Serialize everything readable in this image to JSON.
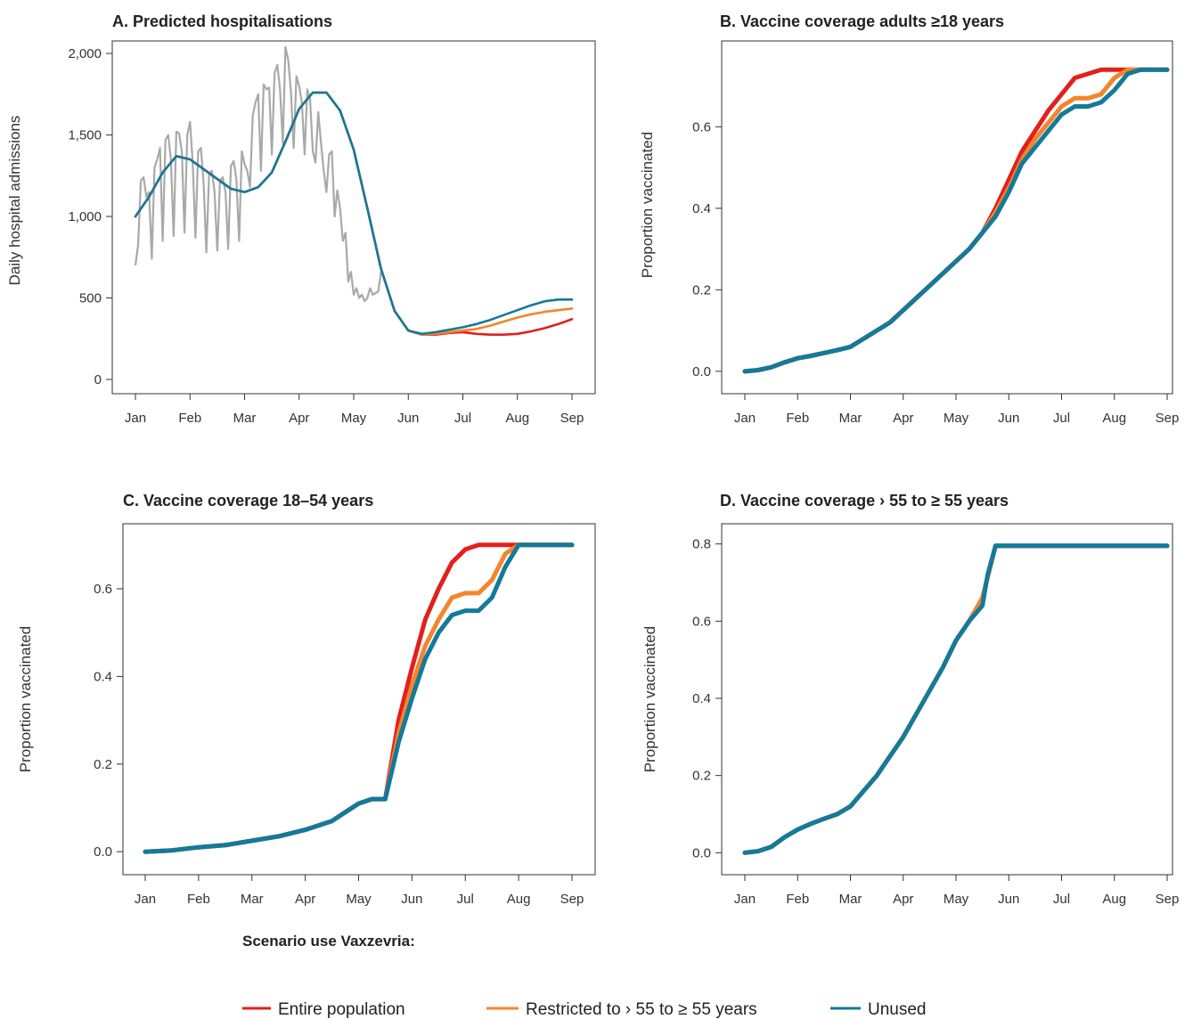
{
  "legend": {
    "title": "Scenario use Vaxzevria:",
    "items": [
      {
        "label": "Entire population",
        "color": "#e2201c"
      },
      {
        "label": "Restricted to › 55 to ≥ 55 years",
        "color": "#f5852b"
      },
      {
        "label": "Unused",
        "color": "#137a9a"
      }
    ]
  },
  "chart_data": [
    {
      "id": "A",
      "type": "line",
      "title": "A. Predicted hospitalisations",
      "ylabel": "Daily hospital admissions",
      "x_ticks": [
        "Jan",
        "Feb",
        "Mar",
        "Apr",
        "May",
        "Jun",
        "Jul",
        "Aug",
        "Sep"
      ],
      "xlim": [
        0,
        8
      ],
      "ylim": [
        0,
        2000
      ],
      "y_ticks": [
        0,
        500,
        1000,
        1500,
        2000
      ],
      "y_tick_labels": [
        "0",
        "500",
        "1,000",
        "1,500",
        "2,000"
      ],
      "observed": {
        "color": "#a9a9a9",
        "x": [
          0,
          0.05,
          0.1,
          0.15,
          0.2,
          0.25,
          0.3,
          0.35,
          0.4,
          0.45,
          0.5,
          0.55,
          0.6,
          0.65,
          0.7,
          0.75,
          0.8,
          0.85,
          0.9,
          0.95,
          1,
          1.05,
          1.1,
          1.15,
          1.2,
          1.25,
          1.3,
          1.35,
          1.4,
          1.45,
          1.5,
          1.55,
          1.6,
          1.65,
          1.7,
          1.75,
          1.8,
          1.85,
          1.9,
          1.95,
          2,
          2.05,
          2.1,
          2.15,
          2.2,
          2.25,
          2.3,
          2.35,
          2.4,
          2.45,
          2.5,
          2.55,
          2.6,
          2.65,
          2.7,
          2.75,
          2.8,
          2.85,
          2.9,
          2.95,
          3,
          3.05,
          3.1,
          3.15,
          3.2,
          3.25,
          3.3,
          3.35,
          3.4,
          3.45,
          3.5,
          3.55,
          3.6,
          3.65,
          3.7,
          3.75,
          3.8,
          3.85,
          3.9,
          3.95,
          4,
          4.05,
          4.1,
          4.15,
          4.2,
          4.25,
          4.3,
          4.35,
          4.4,
          4.45,
          4.5
        ],
        "y": [
          700,
          830,
          1220,
          1240,
          1120,
          1150,
          740,
          1300,
          1350,
          1420,
          850,
          1470,
          1500,
          1350,
          880,
          1520,
          1510,
          1400,
          900,
          1500,
          1580,
          1330,
          870,
          1400,
          1420,
          1200,
          780,
          1260,
          1280,
          1150,
          790,
          1220,
          1240,
          1150,
          800,
          1310,
          1340,
          1230,
          850,
          1400,
          1320,
          1280,
          1180,
          1620,
          1700,
          1750,
          1280,
          1810,
          1780,
          1790,
          1380,
          1880,
          1930,
          1780,
          1450,
          2040,
          1960,
          1760,
          1420,
          1860,
          1800,
          1700,
          1380,
          1780,
          1720,
          1400,
          1330,
          1640,
          1450,
          1280,
          1150,
          1380,
          1400,
          1000,
          1160,
          1050,
          850,
          900,
          600,
          660,
          520,
          560,
          500,
          520,
          480,
          500,
          560,
          520,
          530,
          540,
          660
        ],
        "y_note": "observed values"
      },
      "series": [
        {
          "name": "Entire population",
          "color": "#e2201c",
          "x": [
            0,
            0.25,
            0.5,
            0.75,
            1,
            1.25,
            1.5,
            1.75,
            2,
            2.25,
            2.5,
            2.75,
            3,
            3.25,
            3.5,
            3.75,
            4,
            4.25,
            4.5,
            4.75,
            5,
            5.25,
            5.5,
            5.75,
            6,
            6.25,
            6.5,
            6.75,
            7,
            7.25,
            7.5,
            7.75,
            8
          ],
          "y": [
            1000,
            1120,
            1270,
            1370,
            1350,
            1290,
            1230,
            1170,
            1150,
            1180,
            1270,
            1460,
            1660,
            1760,
            1760,
            1650,
            1410,
            1050,
            680,
            420,
            300,
            275,
            275,
            285,
            290,
            280,
            275,
            275,
            280,
            295,
            315,
            340,
            370
          ]
        },
        {
          "name": "Restricted to › 55 to ≥ 55 years",
          "color": "#f5852b",
          "x": [
            0,
            0.25,
            0.5,
            0.75,
            1,
            1.25,
            1.5,
            1.75,
            2,
            2.25,
            2.5,
            2.75,
            3,
            3.25,
            3.5,
            3.75,
            4,
            4.25,
            4.5,
            4.75,
            5,
            5.25,
            5.5,
            5.75,
            6,
            6.25,
            6.5,
            6.75,
            7,
            7.25,
            7.5,
            7.75,
            8
          ],
          "y": [
            1000,
            1120,
            1270,
            1370,
            1350,
            1290,
            1230,
            1170,
            1150,
            1180,
            1270,
            1460,
            1660,
            1760,
            1760,
            1650,
            1410,
            1050,
            680,
            420,
            300,
            275,
            280,
            290,
            300,
            310,
            330,
            355,
            380,
            400,
            415,
            425,
            435
          ]
        },
        {
          "name": "Unused",
          "color": "#137a9a",
          "x": [
            0,
            0.25,
            0.5,
            0.75,
            1,
            1.25,
            1.5,
            1.75,
            2,
            2.25,
            2.5,
            2.75,
            3,
            3.25,
            3.5,
            3.75,
            4,
            4.25,
            4.5,
            4.75,
            5,
            5.25,
            5.5,
            5.75,
            6,
            6.25,
            6.5,
            6.75,
            7,
            7.25,
            7.5,
            7.75,
            8
          ],
          "y": [
            1000,
            1120,
            1270,
            1370,
            1350,
            1290,
            1230,
            1170,
            1150,
            1180,
            1270,
            1460,
            1660,
            1760,
            1760,
            1650,
            1410,
            1050,
            680,
            420,
            300,
            280,
            290,
            305,
            320,
            340,
            365,
            395,
            425,
            455,
            480,
            490,
            490
          ]
        }
      ]
    },
    {
      "id": "B",
      "type": "line",
      "title": "B. Vaccine coverage adults ≥18 years",
      "ylabel": "Proportion vaccinated",
      "x_ticks": [
        "Jan",
        "Feb",
        "Mar",
        "Apr",
        "May",
        "Jun",
        "Jul",
        "Aug",
        "Sep"
      ],
      "xlim": [
        0,
        8
      ],
      "ylim": [
        -0.02,
        0.78
      ],
      "y_ticks": [
        0,
        0.2,
        0.4,
        0.6
      ],
      "y_tick_labels": [
        "0.0",
        "0.2",
        "0.4",
        "0.6"
      ],
      "series": [
        {
          "name": "Entire population",
          "color": "#e2201c",
          "x": [
            0,
            0.25,
            0.5,
            0.75,
            1,
            1.25,
            1.5,
            1.75,
            2,
            2.25,
            2.5,
            2.75,
            3,
            3.25,
            3.5,
            3.75,
            4,
            4.25,
            4.5,
            4.75,
            5,
            5.25,
            5.5,
            5.75,
            6,
            6.25,
            6.5,
            6.75,
            7,
            7.25,
            7.5,
            7.75,
            8
          ],
          "y": [
            0,
            0.003,
            0.01,
            0.022,
            0.032,
            0.038,
            0.045,
            0.052,
            0.06,
            0.08,
            0.1,
            0.12,
            0.15,
            0.18,
            0.21,
            0.24,
            0.27,
            0.3,
            0.34,
            0.4,
            0.47,
            0.54,
            0.59,
            0.64,
            0.68,
            0.72,
            0.73,
            0.74,
            0.74,
            0.74,
            0.74,
            0.74,
            0.74
          ]
        },
        {
          "name": "Restricted to › 55 to ≥ 55 years",
          "color": "#f5852b",
          "x": [
            0,
            0.25,
            0.5,
            0.75,
            1,
            1.25,
            1.5,
            1.75,
            2,
            2.25,
            2.5,
            2.75,
            3,
            3.25,
            3.5,
            3.75,
            4,
            4.25,
            4.5,
            4.75,
            5,
            5.25,
            5.5,
            5.75,
            6,
            6.25,
            6.5,
            6.75,
            7,
            7.25,
            7.5,
            7.75,
            8
          ],
          "y": [
            0,
            0.003,
            0.01,
            0.022,
            0.032,
            0.038,
            0.045,
            0.052,
            0.06,
            0.08,
            0.1,
            0.12,
            0.15,
            0.18,
            0.21,
            0.24,
            0.27,
            0.3,
            0.34,
            0.39,
            0.45,
            0.52,
            0.57,
            0.61,
            0.65,
            0.67,
            0.67,
            0.68,
            0.72,
            0.74,
            0.74,
            0.74,
            0.74
          ]
        },
        {
          "name": "Unused",
          "color": "#137a9a",
          "x": [
            0,
            0.25,
            0.5,
            0.75,
            1,
            1.25,
            1.5,
            1.75,
            2,
            2.25,
            2.5,
            2.75,
            3,
            3.25,
            3.5,
            3.75,
            4,
            4.25,
            4.5,
            4.75,
            5,
            5.25,
            5.5,
            5.75,
            6,
            6.25,
            6.5,
            6.75,
            7,
            7.25,
            7.5,
            7.75,
            8
          ],
          "y": [
            0,
            0.003,
            0.01,
            0.022,
            0.032,
            0.038,
            0.045,
            0.052,
            0.06,
            0.08,
            0.1,
            0.12,
            0.15,
            0.18,
            0.21,
            0.24,
            0.27,
            0.3,
            0.34,
            0.38,
            0.44,
            0.51,
            0.55,
            0.59,
            0.63,
            0.65,
            0.65,
            0.66,
            0.69,
            0.73,
            0.74,
            0.74,
            0.74
          ]
        }
      ]
    },
    {
      "id": "C",
      "type": "line",
      "title": "C. Vaccine coverage 18–54 years",
      "ylabel": "Proportion vaccinated",
      "x_ticks": [
        "Jan",
        "Feb",
        "Mar",
        "Apr",
        "May",
        "Jun",
        "Jul",
        "Aug",
        "Sep"
      ],
      "xlim": [
        0,
        8
      ],
      "ylim": [
        -0.02,
        0.72
      ],
      "y_ticks": [
        0,
        0.2,
        0.4,
        0.6
      ],
      "y_tick_labels": [
        "0.0",
        "0.2",
        "0.4",
        "0.6"
      ],
      "series": [
        {
          "name": "Entire population",
          "color": "#e2201c",
          "x": [
            0,
            0.5,
            1,
            1.5,
            2,
            2.5,
            3,
            3.5,
            3.75,
            4,
            4.25,
            4.5,
            4.75,
            5,
            5.25,
            5.5,
            5.75,
            6,
            6.25,
            6.5,
            6.75,
            7,
            7.25,
            7.5,
            7.75,
            8
          ],
          "y": [
            0,
            0.003,
            0.01,
            0.015,
            0.025,
            0.035,
            0.05,
            0.07,
            0.09,
            0.11,
            0.12,
            0.12,
            0.3,
            0.42,
            0.53,
            0.6,
            0.66,
            0.69,
            0.7,
            0.7,
            0.7,
            0.7,
            0.7,
            0.7,
            0.7,
            0.7
          ]
        },
        {
          "name": "Restricted to › 55 to ≥ 55 years",
          "color": "#f5852b",
          "x": [
            0,
            0.5,
            1,
            1.5,
            2,
            2.5,
            3,
            3.5,
            3.75,
            4,
            4.25,
            4.5,
            4.75,
            5,
            5.25,
            5.5,
            5.75,
            6,
            6.25,
            6.5,
            6.75,
            7,
            7.25,
            7.5,
            7.75,
            8
          ],
          "y": [
            0,
            0.003,
            0.01,
            0.015,
            0.025,
            0.035,
            0.05,
            0.07,
            0.09,
            0.11,
            0.12,
            0.12,
            0.27,
            0.38,
            0.47,
            0.53,
            0.58,
            0.59,
            0.59,
            0.62,
            0.68,
            0.7,
            0.7,
            0.7,
            0.7,
            0.7
          ]
        },
        {
          "name": "Unused",
          "color": "#137a9a",
          "x": [
            0,
            0.5,
            1,
            1.5,
            2,
            2.5,
            3,
            3.5,
            3.75,
            4,
            4.25,
            4.5,
            4.75,
            5,
            5.25,
            5.5,
            5.75,
            6,
            6.25,
            6.5,
            6.75,
            7,
            7.25,
            7.5,
            7.75,
            8
          ],
          "y": [
            0,
            0.003,
            0.01,
            0.015,
            0.025,
            0.035,
            0.05,
            0.07,
            0.09,
            0.11,
            0.12,
            0.12,
            0.25,
            0.35,
            0.44,
            0.5,
            0.54,
            0.55,
            0.55,
            0.58,
            0.65,
            0.7,
            0.7,
            0.7,
            0.7,
            0.7
          ]
        }
      ]
    },
    {
      "id": "D",
      "type": "line",
      "title": "D. Vaccine coverage › 55 to ≥ 55 years",
      "ylabel": "Proportion vaccinated",
      "x_ticks": [
        "Jan",
        "Feb",
        "Mar",
        "Apr",
        "May",
        "Jun",
        "Jul",
        "Aug",
        "Sep"
      ],
      "xlim": [
        0,
        8
      ],
      "ylim": [
        -0.02,
        0.82
      ],
      "y_ticks": [
        0,
        0.2,
        0.4,
        0.6,
        0.8
      ],
      "y_tick_labels": [
        "0.0",
        "0.2",
        "0.4",
        "0.6",
        "0.8"
      ],
      "series": [
        {
          "name": "Entire population",
          "color": "#e2201c",
          "x": [
            0,
            0.25,
            0.5,
            0.75,
            1,
            1.25,
            1.5,
            1.75,
            2,
            2.25,
            2.5,
            2.75,
            3,
            3.25,
            3.5,
            3.75,
            4,
            4.25,
            4.5,
            4.75,
            5,
            5.5,
            6,
            6.5,
            7,
            7.5,
            8
          ],
          "y": [
            0,
            0.004,
            0.015,
            0.04,
            0.06,
            0.075,
            0.088,
            0.1,
            0.12,
            0.16,
            0.2,
            0.25,
            0.3,
            0.36,
            0.42,
            0.48,
            0.55,
            0.6,
            0.66,
            0.795,
            0.795,
            0.795,
            0.795,
            0.795,
            0.795,
            0.795,
            0.795
          ]
        },
        {
          "name": "Restricted to › 55 to ≥ 55 years",
          "color": "#f5852b",
          "x": [
            0,
            0.25,
            0.5,
            0.75,
            1,
            1.25,
            1.5,
            1.75,
            2,
            2.25,
            2.5,
            2.75,
            3,
            3.25,
            3.5,
            3.75,
            4,
            4.25,
            4.5,
            4.75,
            5,
            5.5,
            6,
            6.5,
            7,
            7.5,
            8
          ],
          "y": [
            0,
            0.004,
            0.015,
            0.04,
            0.06,
            0.075,
            0.088,
            0.1,
            0.12,
            0.16,
            0.2,
            0.25,
            0.3,
            0.36,
            0.42,
            0.48,
            0.55,
            0.6,
            0.66,
            0.795,
            0.795,
            0.795,
            0.795,
            0.795,
            0.795,
            0.795,
            0.795
          ]
        },
        {
          "name": "Unused",
          "color": "#137a9a",
          "x": [
            0,
            0.25,
            0.5,
            0.75,
            1,
            1.25,
            1.5,
            1.75,
            2,
            2.25,
            2.5,
            2.75,
            3,
            3.25,
            3.5,
            3.75,
            4,
            4.25,
            4.5,
            4.6,
            4.75,
            5,
            5.5,
            6,
            6.5,
            7,
            7.5,
            8
          ],
          "y": [
            0,
            0.004,
            0.015,
            0.04,
            0.06,
            0.075,
            0.088,
            0.1,
            0.12,
            0.16,
            0.2,
            0.25,
            0.3,
            0.36,
            0.42,
            0.48,
            0.55,
            0.6,
            0.64,
            0.72,
            0.795,
            0.795,
            0.795,
            0.795,
            0.795,
            0.795,
            0.795,
            0.795
          ]
        }
      ]
    }
  ]
}
